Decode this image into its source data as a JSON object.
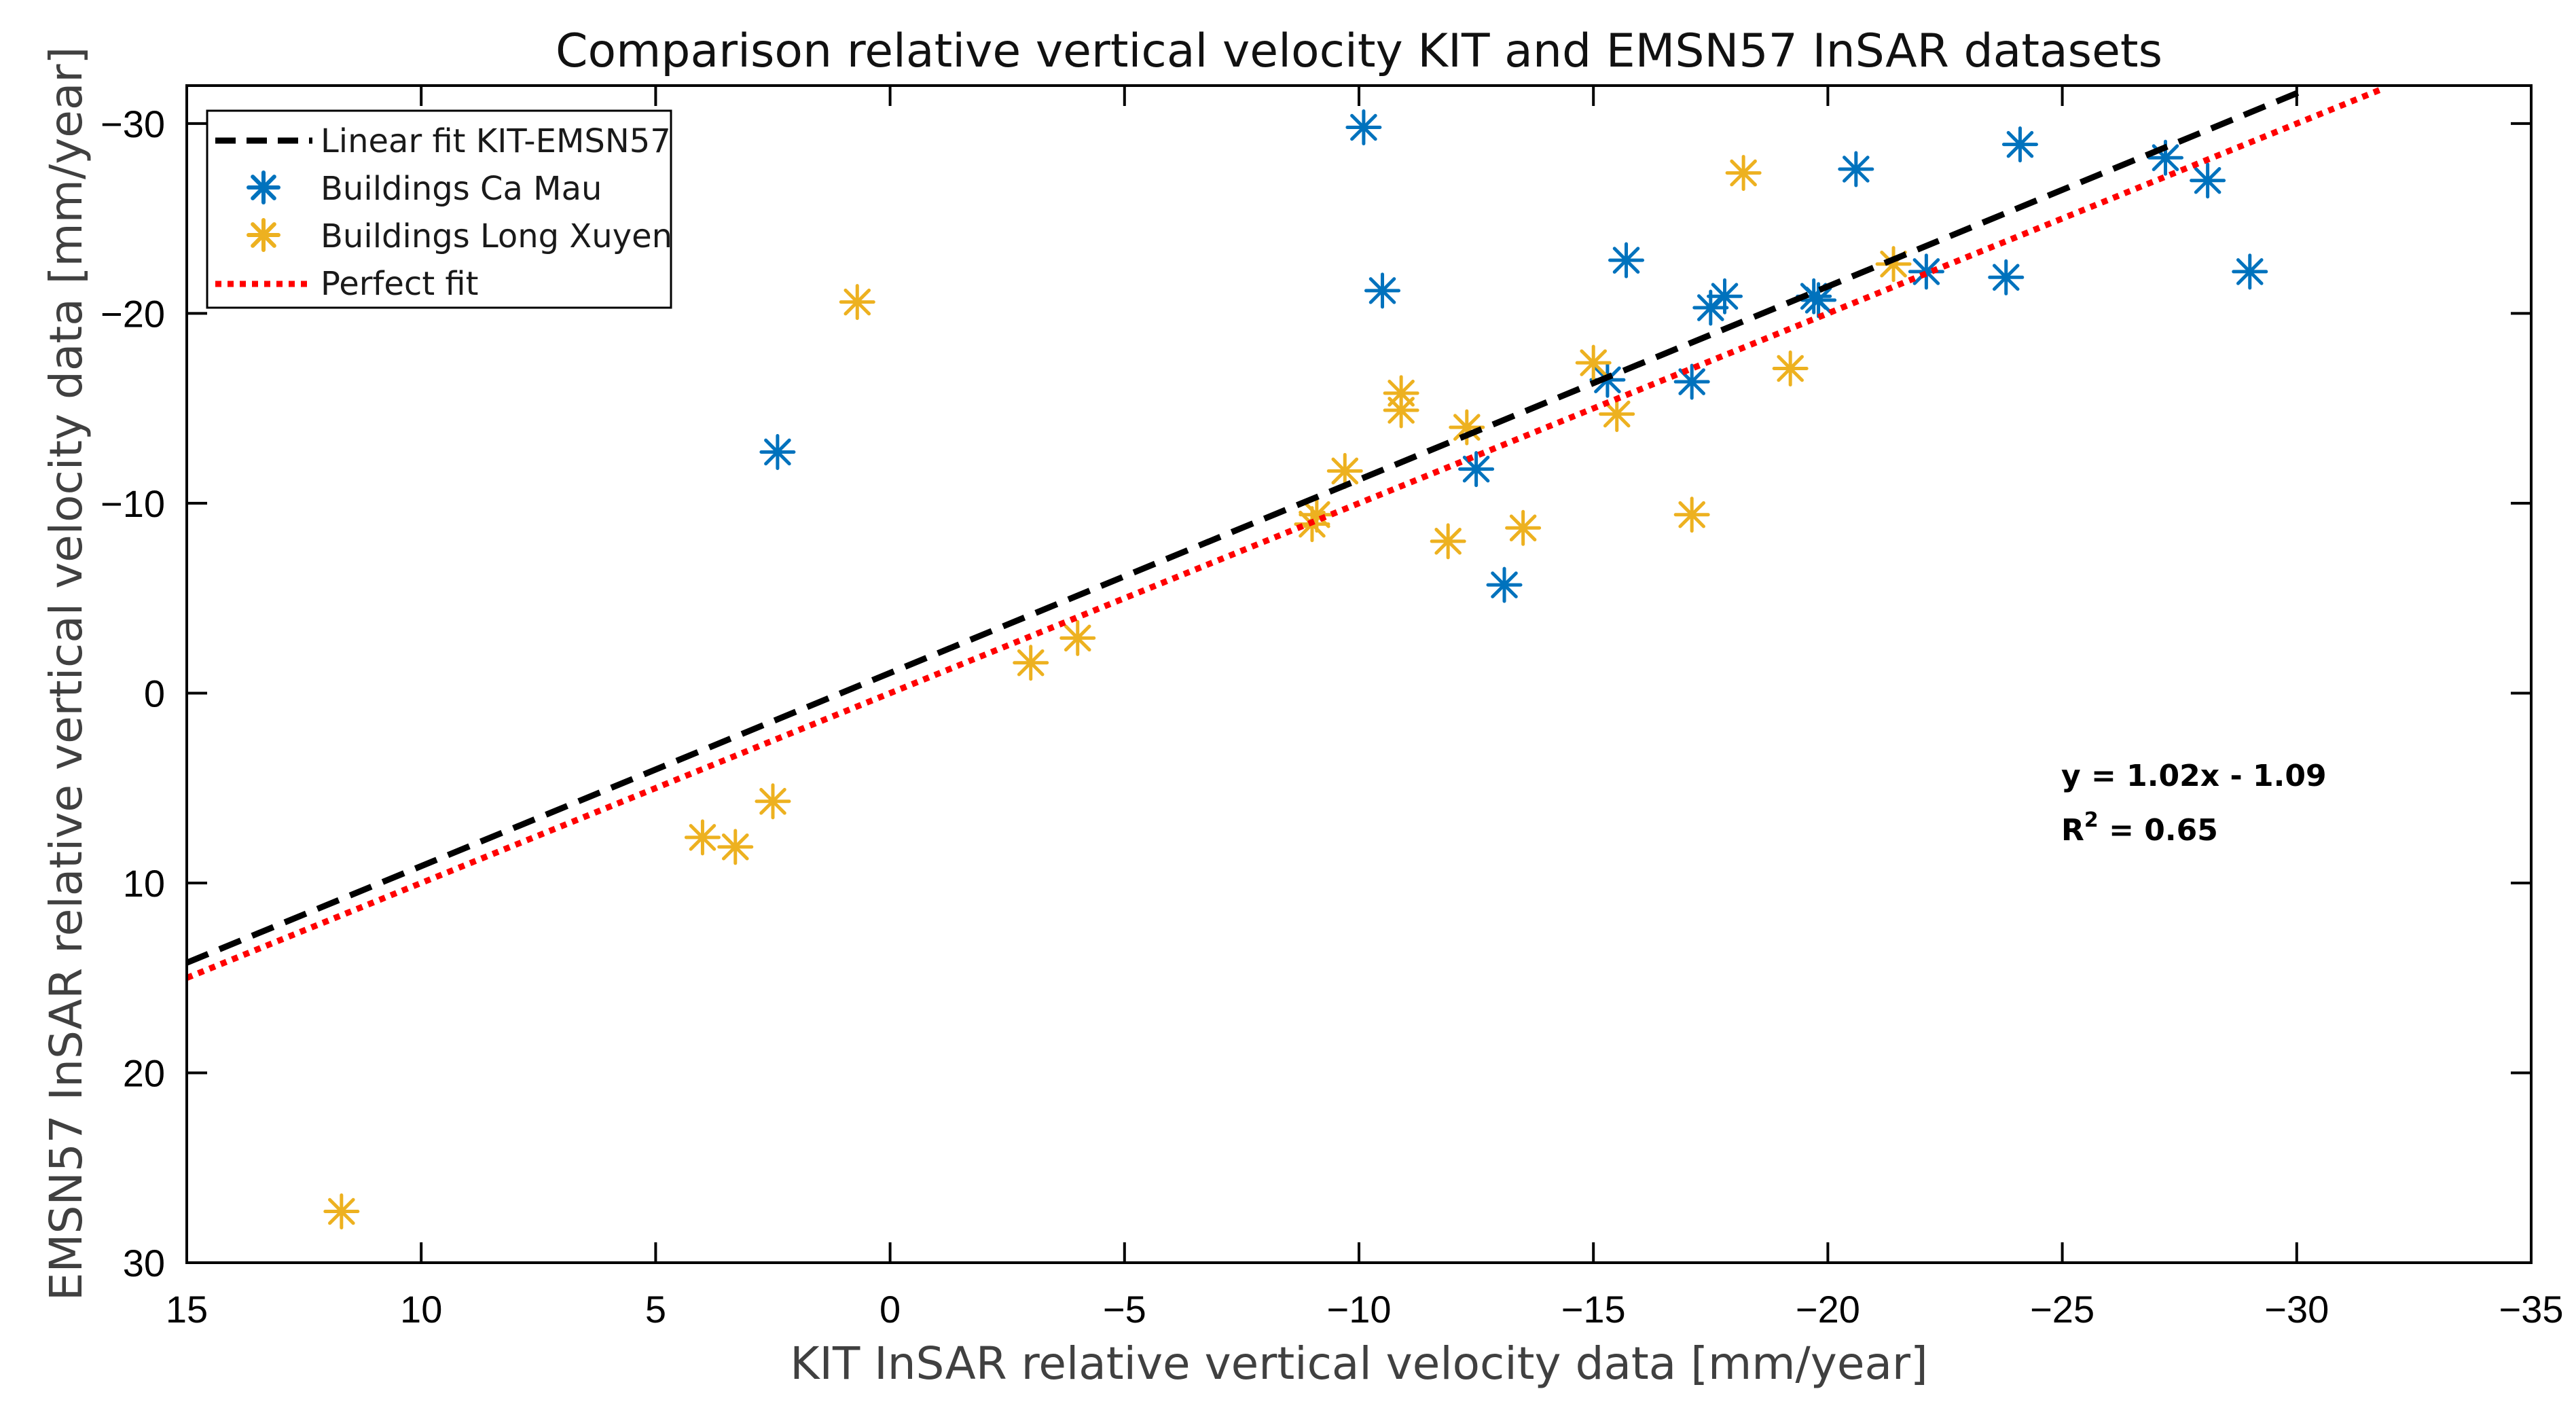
{
  "chart_data": {
    "type": "scatter",
    "title": "Comparison relative vertical velocity KIT and EMSN57 InSAR datasets",
    "xlabel": "KIT InSAR relative vertical velocity data [mm/year]",
    "ylabel": "EMSN57 InSAR relative vertical velocity data [mm/year]",
    "xlim": [
      15,
      -35
    ],
    "ylim": [
      30,
      -32
    ],
    "x_reversed": true,
    "y_reversed": true,
    "xticks": [
      15,
      10,
      5,
      0,
      -5,
      -10,
      -15,
      -20,
      -25,
      -30,
      -35
    ],
    "yticks": [
      -30,
      -20,
      -10,
      0,
      10,
      20,
      30
    ],
    "xtick_labels": [
      "15",
      "10",
      "5",
      "0",
      "−5",
      "−10",
      "−15",
      "−20",
      "−25",
      "−30",
      "−35"
    ],
    "ytick_labels": [
      "−30",
      "−20",
      "−10",
      "0",
      "10",
      "20",
      "30"
    ],
    "legend_position": "top-left",
    "grid": false,
    "series": [
      {
        "name": "Linear fit KIT-EMSN57",
        "kind": "line",
        "style": "dashed",
        "color": "#000000",
        "x": [
          15,
          -30.2
        ],
        "y": [
          14.2,
          -31.8
        ]
      },
      {
        "name": "Buildings Ca Mau",
        "kind": "scatter",
        "marker": "asterisk",
        "color": "#0072BD",
        "points": [
          [
            -10.1,
            -29.8
          ],
          [
            -10.5,
            -21.2
          ],
          [
            2.4,
            -12.7
          ],
          [
            -12.5,
            -11.8
          ],
          [
            -13.1,
            -5.7
          ],
          [
            -15.3,
            -16.5
          ],
          [
            -15.7,
            -22.8
          ],
          [
            -17.1,
            -16.4
          ],
          [
            -17.5,
            -20.3
          ],
          [
            -17.8,
            -20.9
          ],
          [
            -19.7,
            -20.9
          ],
          [
            -19.8,
            -20.7
          ],
          [
            -20.6,
            -27.6
          ],
          [
            -22.1,
            -22.2
          ],
          [
            -23.8,
            -21.9
          ],
          [
            -24.1,
            -28.9
          ],
          [
            -27.2,
            -28.2
          ],
          [
            -28.1,
            -27.0
          ],
          [
            -29.0,
            -22.2
          ]
        ]
      },
      {
        "name": "Buildings Long Xuyen",
        "kind": "scatter",
        "marker": "asterisk",
        "color": "#EDB120",
        "points": [
          [
            11.7,
            27.3
          ],
          [
            4.0,
            7.6
          ],
          [
            3.3,
            8.1
          ],
          [
            2.5,
            5.7
          ],
          [
            0.7,
            -20.6
          ],
          [
            -3.0,
            -1.6
          ],
          [
            -4.0,
            -2.9
          ],
          [
            -9.0,
            -8.9
          ],
          [
            -9.1,
            -9.4
          ],
          [
            -9.7,
            -11.7
          ],
          [
            -10.9,
            -15.8
          ],
          [
            -10.9,
            -14.9
          ],
          [
            -11.9,
            -8.0
          ],
          [
            -12.3,
            -14.0
          ],
          [
            -13.5,
            -8.7
          ],
          [
            -15.0,
            -17.4
          ],
          [
            -15.5,
            -14.7
          ],
          [
            -17.1,
            -9.4
          ],
          [
            -18.2,
            -27.4
          ],
          [
            -19.2,
            -17.1
          ],
          [
            -21.4,
            -22.6
          ]
        ]
      },
      {
        "name": "Perfect fit",
        "kind": "line",
        "style": "dotted",
        "color": "#FF0000",
        "x": [
          15,
          -31.8
        ],
        "y": [
          15,
          -31.8
        ]
      }
    ],
    "annotations": {
      "equation": "y = 1.02x - 1.09",
      "r2_prefix": "R",
      "r2_sup": "2",
      "r2_value": " = 0.65"
    }
  }
}
